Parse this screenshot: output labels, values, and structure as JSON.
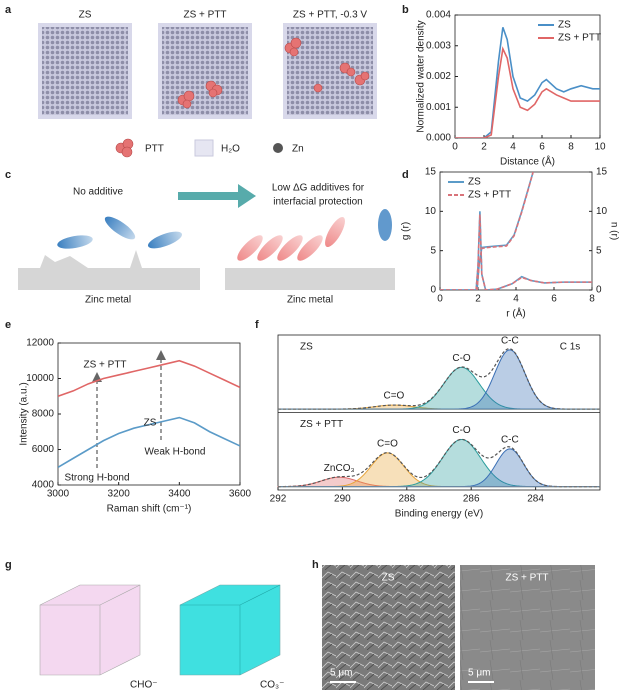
{
  "panel_labels": [
    "a",
    "b",
    "c",
    "d",
    "e",
    "f",
    "g",
    "h"
  ],
  "panel_a": {
    "titles": [
      "ZS",
      "ZS + PTT",
      "ZS + PTT, -0.3 V"
    ],
    "legend": [
      "PTT",
      "H₂O",
      "Zn"
    ]
  },
  "panel_c": {
    "left": "No additive",
    "right_line1": "Low ΔG additives for",
    "right_line2": "interfacial protection",
    "substrates": [
      "Zinc metal",
      "Zinc metal"
    ]
  },
  "panel_g": {
    "labels": [
      "CHO⁻",
      "CO₃⁻"
    ]
  },
  "panel_h": {
    "titles": [
      "ZS",
      "ZS + PTT"
    ],
    "scale_bars": [
      "5 μm",
      "5 μm"
    ]
  },
  "chart_data": [
    {
      "type": "line",
      "xlabel": "Distance (Å)",
      "ylabel": "Normalized water density",
      "x": [
        0,
        1,
        2,
        2.5,
        3,
        3.3,
        3.6,
        4,
        4.5,
        5,
        5.5,
        6,
        6.3,
        7,
        7.5,
        8,
        8.7,
        9.5,
        10
      ],
      "series": [
        {
          "name": "ZS",
          "color": "#4a8fc7",
          "values": [
            0,
            0,
            0,
            0.0002,
            0.0025,
            0.0036,
            0.0032,
            0.002,
            0.0013,
            0.0012,
            0.0014,
            0.0018,
            0.0019,
            0.0016,
            0.0015,
            0.0016,
            0.0017,
            0.0016,
            0.0016
          ]
        },
        {
          "name": "ZS + PTT",
          "color": "#e06666",
          "values": [
            0,
            0,
            0,
            0.0001,
            0.002,
            0.0029,
            0.0026,
            0.0016,
            0.001,
            0.0009,
            0.0011,
            0.0015,
            0.0016,
            0.0014,
            0.0013,
            0.0012,
            0.0012,
            0.0012,
            0.0012
          ]
        }
      ],
      "xlim": [
        0,
        10
      ],
      "xticks": [
        0,
        2,
        4,
        6,
        8,
        10
      ],
      "ylim": [
        0,
        0.004
      ],
      "yticks": [
        {
          "value": 0,
          "label": "0.000"
        },
        {
          "value": 0.001,
          "label": "0.001"
        },
        {
          "value": 0.002,
          "label": "0.002"
        },
        {
          "value": 0.003,
          "label": "0.003"
        },
        {
          "value": 0.004,
          "label": "0.004"
        }
      ],
      "legend": "upper right"
    },
    {
      "type": "line",
      "xlabel": "r (Å)",
      "ylabel": "g (r)",
      "y2label": "n (r)",
      "series": [
        {
          "name": "ZS",
          "color": "#5b9bc8",
          "x": [
            0,
            1.9,
            2.0,
            2.1,
            2.2,
            2.4,
            3,
            3.8,
            4.3,
            4.8,
            5.5,
            6.5,
            8
          ],
          "values": [
            0,
            0,
            3,
            10,
            2,
            0,
            0.1,
            0.8,
            1.7,
            1.2,
            0.9,
            1.0,
            1.0
          ]
        },
        {
          "name": "ZS + PTT",
          "color": "#d9737a",
          "dashed": true,
          "x": [
            0,
            1.9,
            2.0,
            2.1,
            2.2,
            2.4,
            3,
            3.8,
            4.3,
            4.8,
            5.5,
            6.5,
            8
          ],
          "values": [
            0,
            0,
            3,
            9.6,
            2,
            0,
            0.1,
            0.8,
            1.6,
            1.2,
            0.9,
            1.0,
            1.0
          ]
        },
        {
          "color": "#5b9bc8",
          "axis": "y2",
          "x": [
            0,
            1.95,
            2.05,
            2.2,
            2.5,
            3.5,
            3.9,
            4.3,
            4.6,
            4.9
          ],
          "values": [
            0,
            0,
            3,
            5.4,
            5.5,
            5.7,
            7,
            10,
            12.5,
            15
          ]
        },
        {
          "color": "#d9737a",
          "dashed": true,
          "axis": "y2",
          "x": [
            0,
            1.95,
            2.05,
            2.2,
            2.5,
            3.5,
            3.9,
            4.3,
            4.6,
            4.9
          ],
          "values": [
            0,
            0,
            3,
            5.3,
            5.4,
            5.6,
            6.9,
            9.9,
            12.4,
            15
          ]
        }
      ],
      "xlim": [
        0,
        8
      ],
      "xticks": [
        0,
        2,
        4,
        6,
        8
      ],
      "ylim": [
        0,
        15
      ],
      "yticks": [
        0,
        5,
        10,
        15
      ],
      "y2lim": [
        0,
        15
      ],
      "y2ticks": [
        0,
        5,
        10,
        15
      ],
      "legend": "upper left"
    },
    {
      "type": "line",
      "xlabel": "Raman shift (cm⁻¹)",
      "ylabel": "Intensity (a.u.)",
      "x": [
        3000,
        3050,
        3100,
        3150,
        3200,
        3250,
        3300,
        3350,
        3400,
        3450,
        3500,
        3550,
        3600
      ],
      "series": [
        {
          "name": "ZS + PTT",
          "color": "#e06666",
          "values": [
            9000,
            9300,
            9700,
            10000,
            10200,
            10400,
            10600,
            10800,
            11000,
            10700,
            10300,
            9900,
            9500
          ]
        },
        {
          "name": "ZS",
          "color": "#5b9bc8",
          "values": [
            5000,
            5500,
            6000,
            6500,
            6900,
            7200,
            7400,
            7600,
            7800,
            7500,
            7000,
            6600,
            6200
          ]
        }
      ],
      "xlim": [
        3000,
        3600
      ],
      "xticks": [
        3000,
        3200,
        3400,
        3600
      ],
      "ylim": [
        4000,
        12000
      ],
      "yticks": [
        4000,
        6000,
        8000,
        10000,
        12000
      ],
      "annotations": [
        "ZS + PTT",
        "ZS",
        "Weak H-bond",
        "Strong H-bond"
      ]
    },
    {
      "type": "peakfit",
      "xlabel": "Binding energy (eV)",
      "annotation": "C 1s",
      "xlim": [
        292,
        282
      ],
      "xticks": [
        292,
        290,
        288,
        286,
        284
      ],
      "panels": [
        {
          "title": "ZS",
          "ylim": [
            -0.05,
            1.1
          ],
          "peaks": [
            {
              "name": "C=O",
              "center": 288.4,
              "height": 0.06,
              "fwhm": 1.4,
              "color": "#e8a53a"
            },
            {
              "name": "C-O",
              "center": 286.3,
              "height": 0.62,
              "fwhm": 1.3,
              "color": "#2a9d9d"
            },
            {
              "name": "C-C",
              "center": 284.8,
              "height": 0.88,
              "fwhm": 1.1,
              "color": "#3a6fb5"
            }
          ]
        },
        {
          "title": "ZS + PTT",
          "ylim": [
            -0.05,
            1.1
          ],
          "peaks": [
            {
              "name": "ZnCO₃",
              "center": 290.1,
              "height": 0.14,
              "fwhm": 1.3,
              "color": "#e06a6a"
            },
            {
              "name": "C=O",
              "center": 288.6,
              "height": 0.5,
              "fwhm": 1.2,
              "color": "#e8a53a"
            },
            {
              "name": "C-O",
              "center": 286.3,
              "height": 0.7,
              "fwhm": 1.4,
              "color": "#2a9d9d"
            },
            {
              "name": "C-C",
              "center": 284.8,
              "height": 0.56,
              "fwhm": 1.0,
              "color": "#3a6fb5"
            }
          ]
        }
      ]
    }
  ]
}
